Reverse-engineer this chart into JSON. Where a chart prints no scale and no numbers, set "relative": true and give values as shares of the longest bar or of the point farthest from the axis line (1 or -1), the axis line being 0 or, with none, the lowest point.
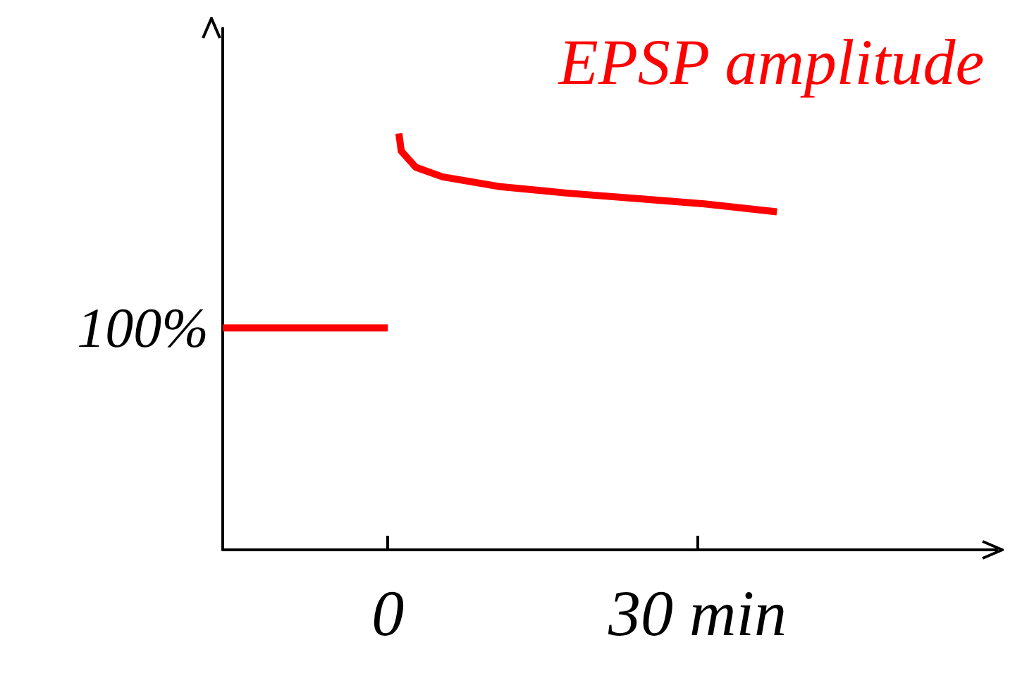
{
  "chart_data": {
    "type": "line",
    "title": "EPSP amplitude",
    "relative": true,
    "xlim": [
      -16,
      59
    ],
    "xticks": [
      0,
      {
        "value": 30,
        "label": "30 min"
      }
    ],
    "series": [
      {
        "color": "#ff0000",
        "x": [
          -16,
          0,
          null,
          1.07,
          1.3,
          2.7,
          5.3,
          10.7,
          17.3,
          24,
          30.7,
          37.7
        ],
        "values": [
          0.533,
          0.533,
          null,
          1.0,
          0.958,
          0.919,
          0.896,
          0.873,
          0.857,
          0.844,
          0.831,
          0.812
        ]
      }
    ],
    "annotations": [
      {
        "text": "100%",
        "x": -16,
        "y": 0.533
      }
    ],
    "grid": false,
    "marker": "none",
    "line_style": "solid"
  }
}
